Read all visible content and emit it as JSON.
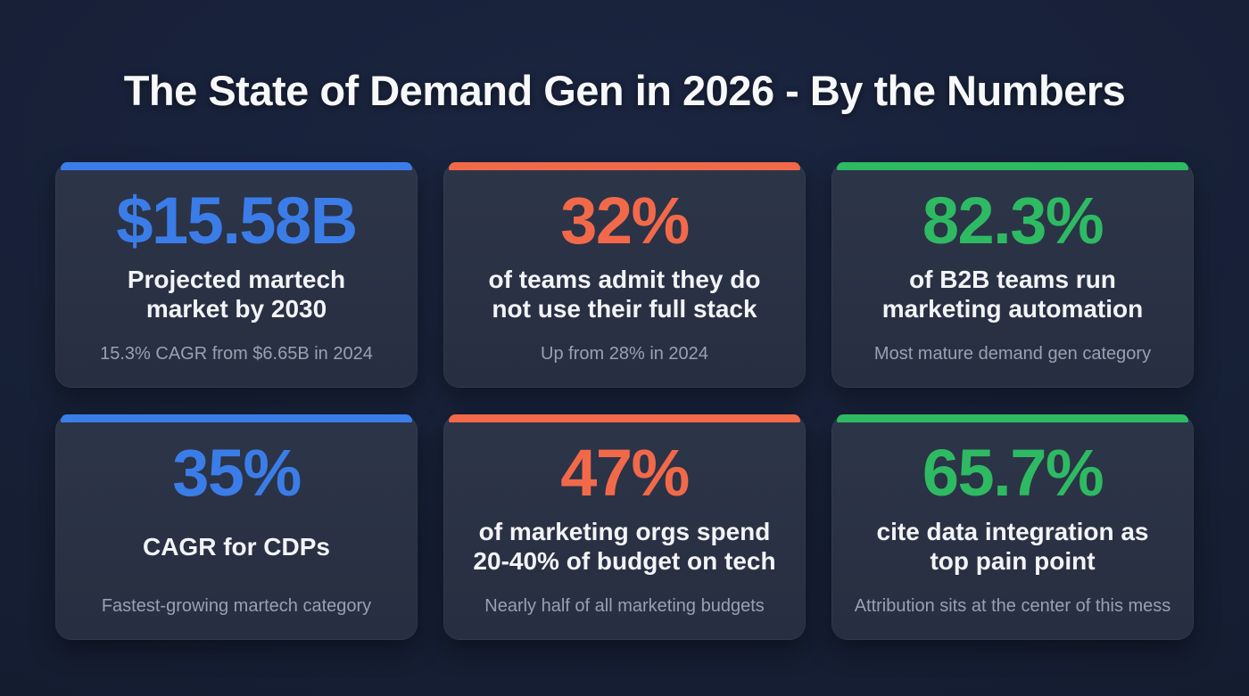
{
  "page": {
    "title": "The State of Demand Gen in 2026 - By the Numbers"
  },
  "colors": {
    "background": "#161F35",
    "card": "#2A3243",
    "blue": "#3B7DE8",
    "orange": "#F2694A",
    "green": "#2EBA62",
    "heading": "#F7F8FA",
    "subtext": "#98A1B0"
  },
  "cards": [
    {
      "accent": "blue",
      "value": "$15.58B",
      "label": "Projected martech\nmarket by 2030",
      "sublabel": "15.3% CAGR from $6.65B in 2024"
    },
    {
      "accent": "orange",
      "value": "32%",
      "label": "of teams admit they do\nnot use their full stack",
      "sublabel": "Up from 28% in 2024"
    },
    {
      "accent": "green",
      "value": "82.3%",
      "label": "of B2B teams run\nmarketing automation",
      "sublabel": "Most mature demand gen category"
    },
    {
      "accent": "blue",
      "value": "35%",
      "label": "CAGR for CDPs",
      "sublabel": "Fastest-growing martech category"
    },
    {
      "accent": "orange",
      "value": "47%",
      "label": "of marketing orgs spend\n20-40% of budget on tech",
      "sublabel": "Nearly half of all marketing budgets"
    },
    {
      "accent": "green",
      "value": "65.7%",
      "label": "cite data integration as\ntop pain point",
      "sublabel": "Attribution sits at the center of this mess"
    }
  ],
  "chart_data": {
    "type": "table",
    "title": "The State of Demand Gen in 2026 - By the Numbers",
    "columns": [
      "value",
      "label",
      "sublabel",
      "accent_color"
    ],
    "rows": [
      [
        "$15.58B",
        "Projected martech market by 2030",
        "15.3% CAGR from $6.65B in 2024",
        "blue"
      ],
      [
        "32%",
        "of teams admit they do not use their full stack",
        "Up from 28% in 2024",
        "orange"
      ],
      [
        "82.3%",
        "of B2B teams run marketing automation",
        "Most mature demand gen category",
        "green"
      ],
      [
        "35%",
        "CAGR for CDPs",
        "Fastest-growing martech category",
        "blue"
      ],
      [
        "47%",
        "of marketing orgs spend 20-40% of budget on tech",
        "Nearly half of all marketing budgets",
        "orange"
      ],
      [
        "65.7%",
        "cite data integration as top pain point",
        "Attribution sits at the center of this mess",
        "green"
      ]
    ]
  }
}
